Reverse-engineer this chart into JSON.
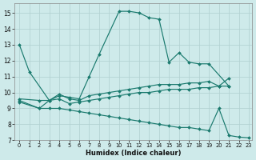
{
  "xlabel": "Humidex (Indice chaleur)",
  "background_color": "#ceeaea",
  "grid_color": "#afd0d0",
  "line_color": "#1a7a6e",
  "xlim": [
    -0.5,
    23.3
  ],
  "ylim": [
    7,
    15.6
  ],
  "yticks": [
    7,
    8,
    9,
    10,
    11,
    12,
    13,
    14,
    15
  ],
  "xticks": [
    0,
    1,
    2,
    3,
    4,
    5,
    6,
    7,
    8,
    9,
    10,
    11,
    12,
    13,
    14,
    15,
    16,
    17,
    18,
    19,
    20,
    21,
    22,
    23
  ],
  "series": [
    {
      "x": [
        0,
        1,
        3,
        4,
        5,
        6,
        7,
        8,
        10,
        11,
        12,
        13,
        14,
        15,
        16,
        17,
        18,
        19,
        21
      ],
      "y": [
        13,
        11.3,
        9.5,
        9.8,
        9.7,
        9.6,
        11.0,
        12.4,
        15.1,
        15.1,
        15.0,
        14.7,
        14.6,
        11.9,
        12.5,
        11.9,
        11.8,
        11.8,
        10.4
      ]
    },
    {
      "x": [
        0,
        2,
        3,
        4,
        5,
        6,
        7,
        8,
        9,
        10,
        11,
        12,
        13,
        14,
        15,
        16,
        17,
        18,
        19,
        20,
        21
      ],
      "y": [
        9.6,
        9.5,
        9.5,
        9.9,
        9.6,
        9.5,
        9.8,
        9.9,
        10.0,
        10.1,
        10.2,
        10.3,
        10.4,
        10.5,
        10.5,
        10.5,
        10.6,
        10.6,
        10.7,
        10.4,
        10.9
      ]
    },
    {
      "x": [
        0,
        2,
        3,
        4,
        5,
        6,
        7,
        8,
        9,
        10,
        11,
        12,
        13,
        14,
        15,
        16,
        17,
        18,
        19,
        20,
        21
      ],
      "y": [
        9.5,
        9.0,
        9.5,
        9.6,
        9.3,
        9.4,
        9.5,
        9.6,
        9.7,
        9.8,
        9.9,
        10.0,
        10.0,
        10.1,
        10.2,
        10.2,
        10.2,
        10.3,
        10.3,
        10.4,
        10.4
      ]
    },
    {
      "x": [
        0,
        2,
        3,
        4,
        5,
        6,
        7,
        8,
        9,
        10,
        11,
        12,
        13,
        14,
        15,
        16,
        17,
        18,
        19,
        20,
        21,
        22,
        23
      ],
      "y": [
        9.4,
        9.0,
        9.0,
        9.0,
        8.9,
        8.8,
        8.7,
        8.6,
        8.5,
        8.4,
        8.3,
        8.2,
        8.1,
        8.0,
        7.9,
        7.8,
        7.8,
        7.7,
        7.6,
        9.0,
        7.3,
        7.2,
        7.15
      ]
    }
  ]
}
